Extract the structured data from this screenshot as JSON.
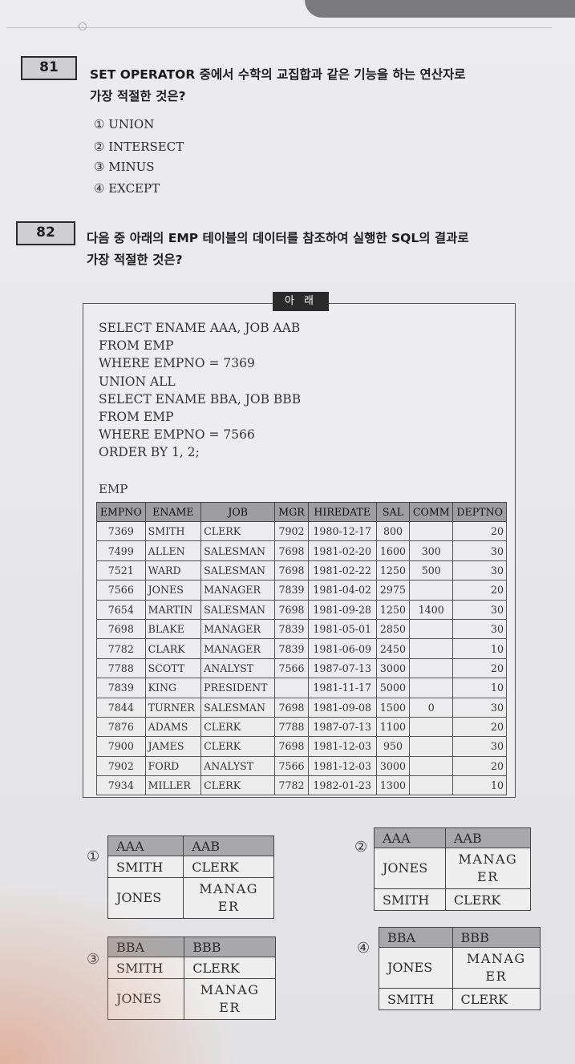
{
  "q81": {
    "num": "81",
    "line1": "SET OPERATOR 중에서 수학의 교집합과 같은 기능을 하는 연산자로",
    "line2": "가장 적절한 것은?",
    "choices": [
      "① UNION",
      "② INTERSECT",
      "③ MINUS",
      "④ EXCEPT"
    ]
  },
  "q82": {
    "num": "82",
    "line1": "다음 중 아래의 EMP 테이블의 데이터를 참조하여 실행한 SQL의 결과로",
    "line2": "가장 적절한 것은?",
    "box_label": "아 래",
    "sql": [
      "SELECT ENAME AAA, JOB AAB",
      "FROM EMP",
      "WHERE EMPNO = 7369",
      "UNION ALL",
      "SELECT ENAME BBA, JOB BBB",
      "FROM EMP",
      "WHERE EMPNO = 7566",
      "ORDER BY 1, 2;"
    ],
    "table_label": "EMP",
    "emp_headers": [
      "EMPNO",
      "ENAME",
      "JOB",
      "MGR",
      "HIREDATE",
      "SAL",
      "COMM",
      "DEPTNO"
    ],
    "emp_rows": [
      [
        "7369",
        "SMITH",
        "CLERK",
        "7902",
        "1980-12-17",
        "800",
        "",
        "20"
      ],
      [
        "7499",
        "ALLEN",
        "SALESMAN",
        "7698",
        "1981-02-20",
        "1600",
        "300",
        "30"
      ],
      [
        "7521",
        "WARD",
        "SALESMAN",
        "7698",
        "1981-02-22",
        "1250",
        "500",
        "30"
      ],
      [
        "7566",
        "JONES",
        "MANAGER",
        "7839",
        "1981-04-02",
        "2975",
        "",
        "20"
      ],
      [
        "7654",
        "MARTIN",
        "SALESMAN",
        "7698",
        "1981-09-28",
        "1250",
        "1400",
        "30"
      ],
      [
        "7698",
        "BLAKE",
        "MANAGER",
        "7839",
        "1981-05-01",
        "2850",
        "",
        "30"
      ],
      [
        "7782",
        "CLARK",
        "MANAGER",
        "7839",
        "1981-06-09",
        "2450",
        "",
        "10"
      ],
      [
        "7788",
        "SCOTT",
        "ANALYST",
        "7566",
        "1987-07-13",
        "3000",
        "",
        "20"
      ],
      [
        "7839",
        "KING",
        "PRESIDENT",
        "",
        "1981-11-17",
        "5000",
        "",
        "10"
      ],
      [
        "7844",
        "TURNER",
        "SALESMAN",
        "7698",
        "1981-09-08",
        "1500",
        "0",
        "30"
      ],
      [
        "7876",
        "ADAMS",
        "CLERK",
        "7788",
        "1987-07-13",
        "1100",
        "",
        "20"
      ],
      [
        "7900",
        "JAMES",
        "CLERK",
        "7698",
        "1981-12-03",
        "950",
        "",
        "30"
      ],
      [
        "7902",
        "FORD",
        "ANALYST",
        "7566",
        "1981-12-03",
        "3000",
        "",
        "20"
      ],
      [
        "7934",
        "MILLER",
        "CLERK",
        "7782",
        "1982-01-23",
        "1300",
        "",
        "10"
      ]
    ],
    "answers": [
      {
        "num": "①",
        "headers": [
          "AAA",
          "AAB"
        ],
        "rows": [
          [
            "SMITH",
            "CLERK"
          ],
          [
            "JONES",
            "MANAGER"
          ]
        ]
      },
      {
        "num": "②",
        "headers": [
          "AAA",
          "AAB"
        ],
        "rows": [
          [
            "JONES",
            "MANAGER"
          ],
          [
            "SMITH",
            "CLERK"
          ]
        ]
      },
      {
        "num": "③",
        "headers": [
          "BBA",
          "BBB"
        ],
        "rows": [
          [
            "SMITH",
            "CLERK"
          ],
          [
            "JONES",
            "MANAGER"
          ]
        ]
      },
      {
        "num": "④",
        "headers": [
          "BBA",
          "BBB"
        ],
        "rows": [
          [
            "JONES",
            "MANAGER"
          ],
          [
            "SMITH",
            "CLERK"
          ]
        ]
      }
    ]
  }
}
